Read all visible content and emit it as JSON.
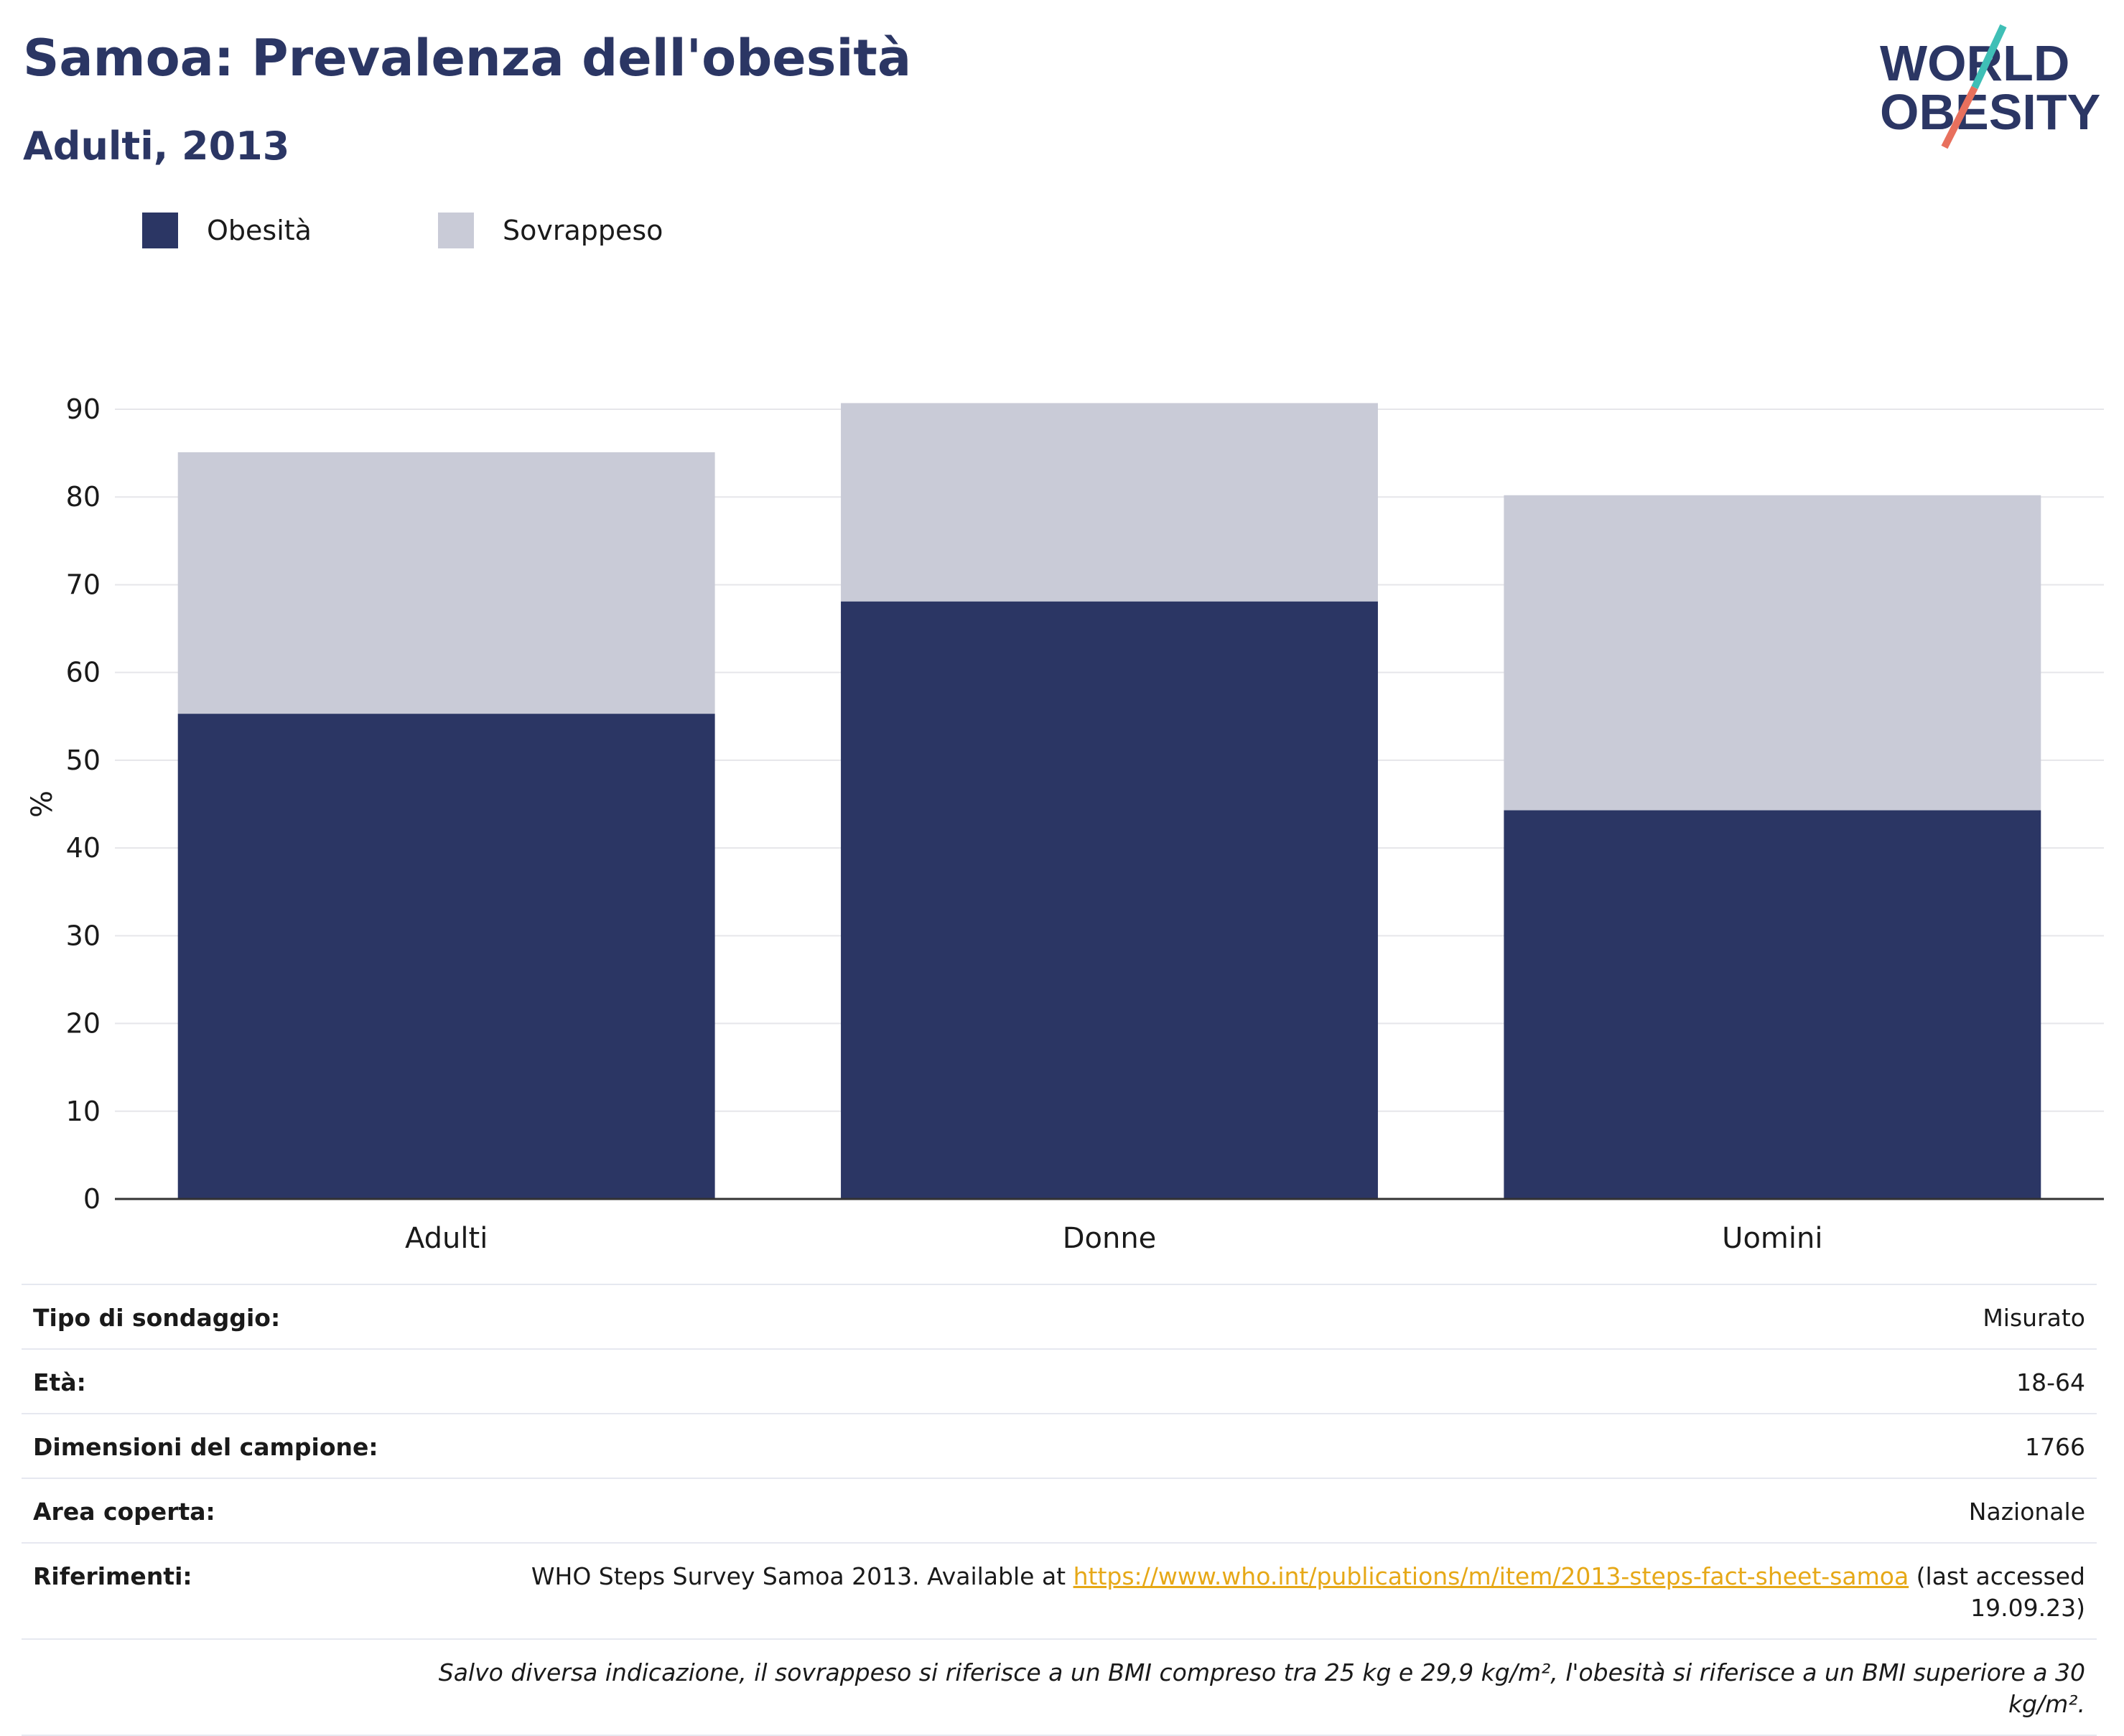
{
  "header": {
    "title": "Samoa: Prevalenza dell'obesità",
    "subtitle": "Adulti, 2013"
  },
  "logo": {
    "line1": "WORLD",
    "line2": "OBESITY"
  },
  "colors": {
    "obesity": "#2b3664",
    "overweight": "#c9cbd7",
    "accent_teal": "#3fbfb6",
    "accent_red": "#e8705d",
    "link": "#e6a817"
  },
  "chart_data": {
    "type": "bar",
    "stacked": true,
    "categories": [
      "Adulti",
      "Donne",
      "Uomini"
    ],
    "series": [
      {
        "name": "Obesità",
        "values": [
          55.3,
          68.1,
          44.3
        ]
      },
      {
        "name": "Sovrappeso",
        "values": [
          29.8,
          22.6,
          35.9
        ]
      }
    ],
    "ylabel": "%",
    "ylim": [
      0,
      90
    ],
    "yticks": [
      0,
      10,
      20,
      30,
      40,
      50,
      60,
      70,
      80,
      90
    ],
    "grid": true,
    "legend_position": "top-left"
  },
  "info": {
    "rows": [
      {
        "key": "Tipo di sondaggio:",
        "value": "Misurato"
      },
      {
        "key": "Età:",
        "value": "18-64"
      },
      {
        "key": "Dimensioni del campione:",
        "value": "1766"
      },
      {
        "key": "Area coperta:",
        "value": "Nazionale"
      }
    ],
    "references": {
      "key": "Riferimenti:",
      "text_before": "WHO Steps Survey Samoa 2013. Available at ",
      "link": "https://www.who.int/publications/m/item/2013-steps-fact-sheet-samoa",
      "text_after": " (last accessed",
      "date": "19.09.23)"
    },
    "note": "Salvo diversa indicazione, il sovrappeso si riferisce a un BMI compreso tra 25 kg e 29,9 kg/m², l'obesità si riferisce a un BMI superiore a 30 kg/m²."
  }
}
